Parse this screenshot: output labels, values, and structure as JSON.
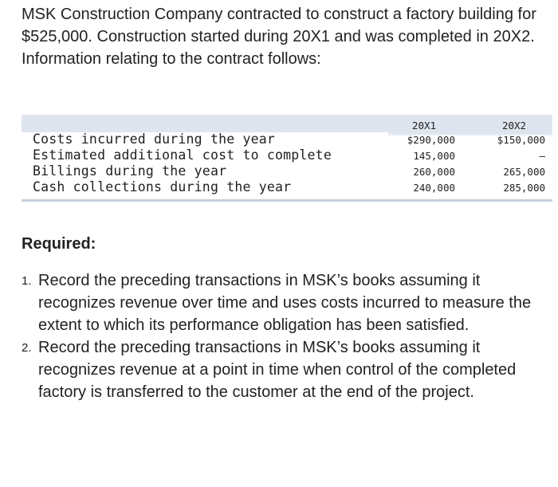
{
  "intro": {
    "text": "MSK Construction Company contracted to construct a factory building for $525,000. Construction started during 20X1 and was completed in 20X2. Information relating to the contract follows:"
  },
  "table": {
    "columns": [
      "20X1",
      "20X2"
    ],
    "rows": [
      {
        "label": "Costs incurred during the year",
        "values": [
          "$290,000",
          "$150,000"
        ]
      },
      {
        "label": "Estimated additional cost to complete",
        "values": [
          "145,000",
          "–"
        ]
      },
      {
        "label": "Billings during the year",
        "values": [
          "260,000",
          "265,000"
        ]
      },
      {
        "label": "Cash collections during the year",
        "values": [
          "240,000",
          "285,000"
        ]
      }
    ]
  },
  "required": {
    "heading": "Required:",
    "items": [
      {
        "number": "1.",
        "text": "Record the preceding transactions in MSK’s books assuming it recognizes revenue over time and uses costs incurred to measure the extent to which its performance obligation has been satisfied."
      },
      {
        "number": "2.",
        "text": "Record the preceding transactions in MSK’s books assuming it recognizes revenue at a point in time when control of the completed factory is transferred to the customer at the end of the project."
      }
    ]
  }
}
